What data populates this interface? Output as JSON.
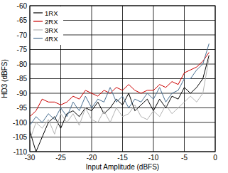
{
  "chart_data": {
    "type": "line",
    "x_label": "Input Amplitude (dBFS)",
    "y_label": "HD3 (dBFS)",
    "x": [
      -30,
      -29,
      -28,
      -27,
      -26,
      -25,
      -24,
      -23,
      -22,
      -21,
      -20,
      -19,
      -18,
      -17,
      -16,
      -15,
      -14,
      -13,
      -12,
      -11,
      -10,
      -9,
      -8,
      -7,
      -6,
      -5,
      -4,
      -3,
      -2,
      -1
    ],
    "series": [
      {
        "name": "1RX",
        "color": "#000000",
        "values": [
          -103,
          -110,
          -105,
          -100,
          -98,
          -102,
          -97,
          -96,
          -98,
          -95,
          -96,
          -93,
          -97,
          -95,
          -92,
          -94,
          -90,
          -96,
          -94,
          -92,
          -96,
          -92,
          -95,
          -91,
          -92,
          -88,
          -90,
          -88,
          -85,
          -77
        ]
      },
      {
        "name": "2RX",
        "color": "#cc0000",
        "values": [
          -98,
          -96,
          -92,
          -93,
          -93,
          -94,
          -93,
          -91,
          -92,
          -89,
          -90,
          -91,
          -89,
          -90,
          -88,
          -89,
          -87,
          -89,
          -90,
          -89,
          -89,
          -87,
          -88,
          -86,
          -87,
          -83,
          -82,
          -81,
          -79,
          -76
        ]
      },
      {
        "name": "3RX",
        "color": "#b4b4b4",
        "values": [
          -106,
          -100,
          -102,
          -99,
          -104,
          -97,
          -100,
          -97,
          -101,
          -95,
          -99,
          -100,
          -96,
          -100,
          -95,
          -98,
          -97,
          -94,
          -98,
          -99,
          -96,
          -98,
          -94,
          -97,
          -95,
          -93,
          -91,
          -93,
          -90,
          -78
        ]
      },
      {
        "name": "4RX",
        "color": "#4a7092",
        "values": [
          -101,
          -98,
          -100,
          -97,
          -99,
          -95,
          -98,
          -93,
          -96,
          -91,
          -95,
          -92,
          -93,
          -88,
          -93,
          -91,
          -95,
          -92,
          -93,
          -90,
          -92,
          -88,
          -93,
          -90,
          -89,
          -85,
          -85,
          -82,
          -80,
          -73
        ]
      }
    ],
    "xlim": [
      -30,
      0
    ],
    "xticks": [
      -30,
      -25,
      -20,
      -15,
      -10,
      -5,
      0
    ],
    "ylim": [
      -110,
      -60
    ],
    "yticks": [
      -110,
      -105,
      -100,
      -95,
      -90,
      -85,
      -80,
      -75,
      -70,
      -65,
      -60
    ],
    "grid": true,
    "legend": "top-left"
  }
}
